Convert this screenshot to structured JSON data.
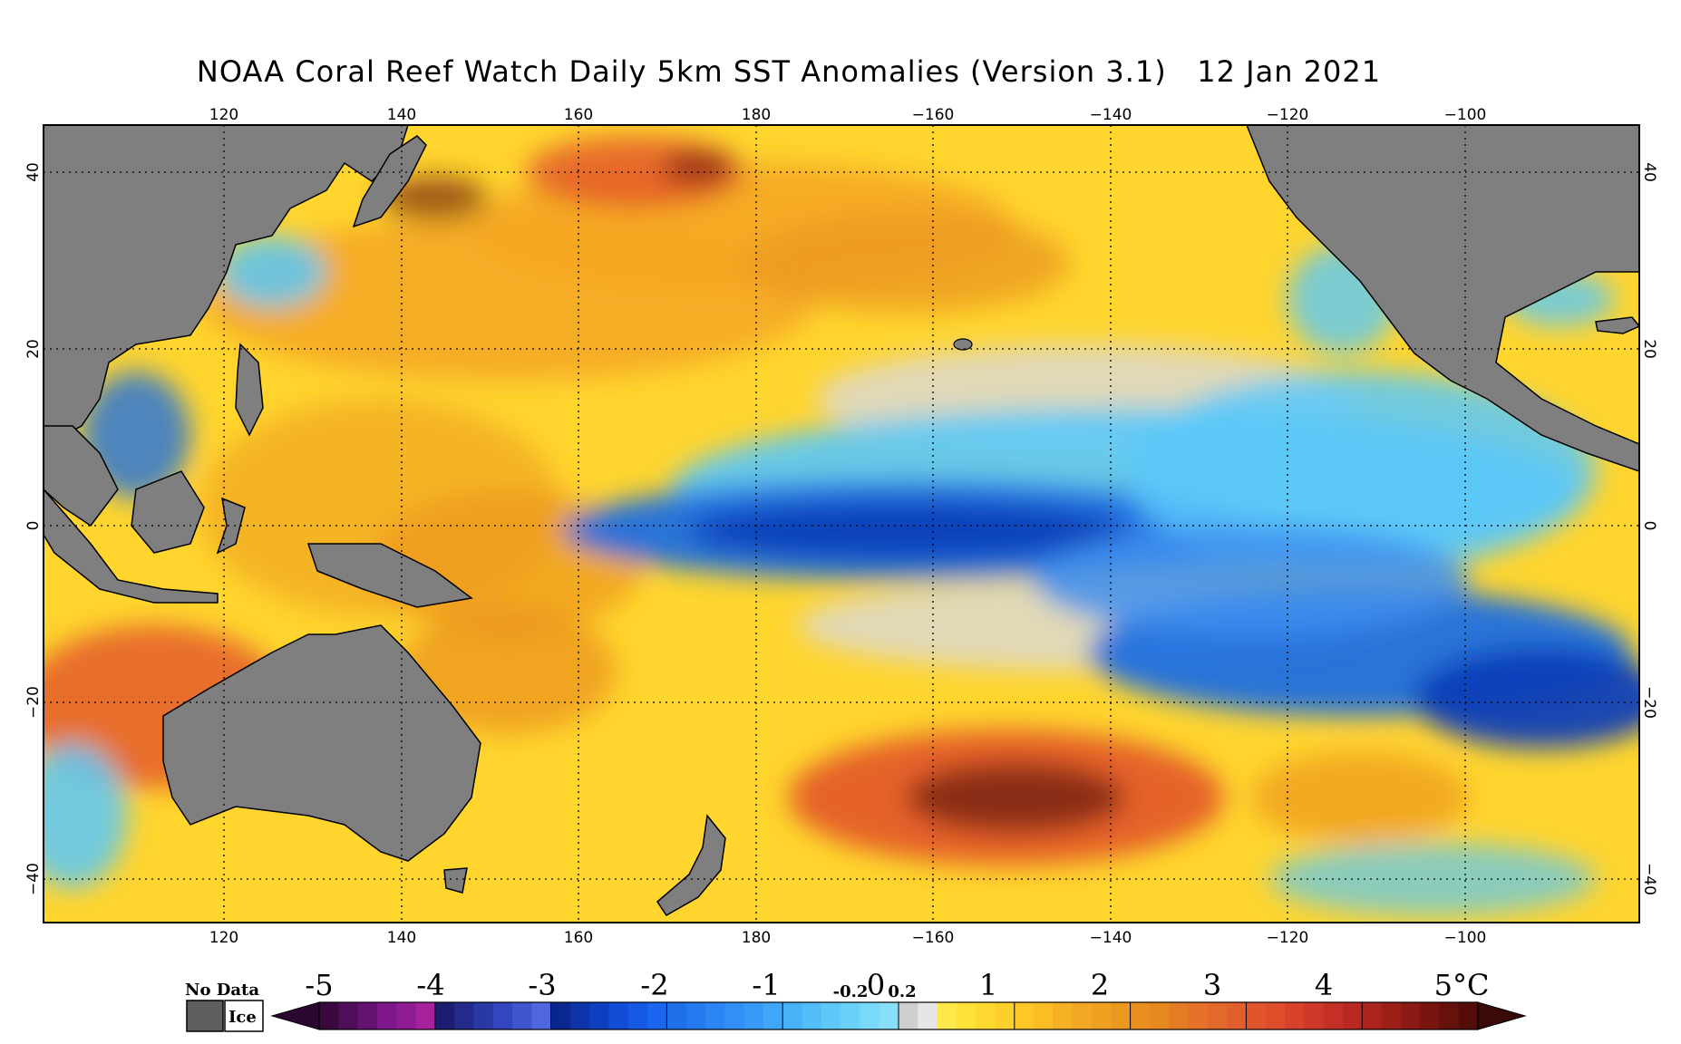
{
  "title": "NOAA Coral Reef Watch Daily 5km SST Anomalies (Version 3.1)   12 Jan 2021",
  "map": {
    "lon_labels": [
      "120",
      "140",
      "160",
      "180",
      "−160",
      "−140",
      "−120",
      "−100"
    ],
    "lat_labels": [
      "40",
      "20",
      "0",
      "−20",
      "−40"
    ],
    "colors": {
      "land": "#7f7f7f",
      "frame": "#000000",
      "warm_light": "#ffe033",
      "warm_mid": "#f5a623",
      "warm_strong": "#e2542a",
      "warm_extreme": "#7a2410",
      "cool_light": "#5ac8fa",
      "cool_mid": "#1f6fe0",
      "cool_strong": "#0d3fb8",
      "neutral": "#d9d9d9"
    }
  },
  "legend": {
    "no_data": "No Data",
    "ice": "Ice",
    "labels": [
      "-5",
      "-4",
      "-3",
      "-2",
      "-1",
      "1",
      "2",
      "3",
      "4"
    ],
    "last_label": "5°C",
    "center_zero": "0",
    "minus_small": "-0.2",
    "plus_small": "0.2",
    "colors": [
      "#3a0a3e",
      "#4e0e5a",
      "#661273",
      "#7d178a",
      "#8f1c94",
      "#a7209c",
      "#1c1c70",
      "#232a8c",
      "#2a38a6",
      "#3346bd",
      "#3f55cf",
      "#4e67dd",
      "#0a2790",
      "#0c33a8",
      "#0e3fc0",
      "#114dd6",
      "#1559e4",
      "#1a66ee",
      "#1f6fe8",
      "#2479ee",
      "#2a84f2",
      "#318ff5",
      "#389af7",
      "#3fa6f8",
      "#48b2f8",
      "#52bdf8",
      "#5ec8f8",
      "#6ad1f8",
      "#78d9f8",
      "#88e0f8",
      "#cfcfcf",
      "#e6e6e6",
      "#ffe94a",
      "#ffe13a",
      "#ffd930",
      "#ffd02a",
      "#ffc627",
      "#fbbd25",
      "#f5b023",
      "#f2a822",
      "#efa020",
      "#ec9720",
      "#e98f1f",
      "#e6871f",
      "#e57c25",
      "#e4722a",
      "#e3682c",
      "#e25e2d",
      "#e1552d",
      "#df4c2c",
      "#d9412a",
      "#cf3828",
      "#c43025",
      "#b82922",
      "#ab241d",
      "#9c1f18",
      "#8a1a13",
      "#78150f",
      "#66110c",
      "#540e09"
    ]
  }
}
